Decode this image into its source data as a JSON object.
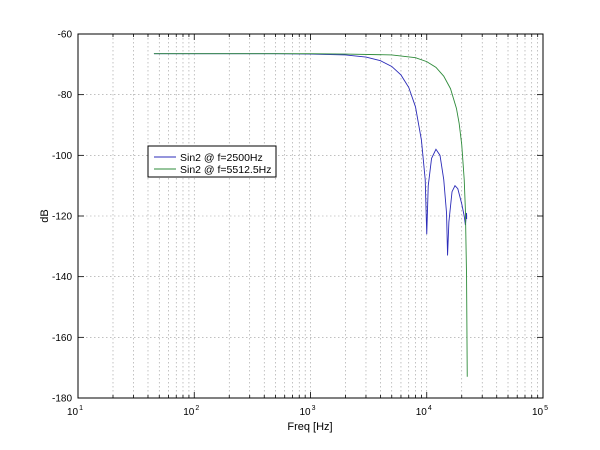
{
  "chart_data": {
    "type": "line",
    "title": "",
    "xlabel": "Freq [Hz]",
    "ylabel": "dB",
    "xscale": "log",
    "xlim": [
      10,
      100000
    ],
    "ylim": [
      -180,
      -60
    ],
    "grid": true,
    "legend_position": "upper-left",
    "x_ticks": [
      {
        "base": "10",
        "exp": "1"
      },
      {
        "base": "10",
        "exp": "2"
      },
      {
        "base": "10",
        "exp": "3"
      },
      {
        "base": "10",
        "exp": "4"
      },
      {
        "base": "10",
        "exp": "5"
      }
    ],
    "y_ticks": [
      "-60",
      "-80",
      "-100",
      "-120",
      "-140",
      "-160",
      "-180"
    ],
    "series": [
      {
        "name": "Sin2 @ f=2500Hz",
        "color": "#2b2bb8",
        "points": [
          [
            45,
            -66.5
          ],
          [
            100,
            -66.5
          ],
          [
            500,
            -66.5
          ],
          [
            1000,
            -66.6
          ],
          [
            2000,
            -66.9
          ],
          [
            3000,
            -67.6
          ],
          [
            4000,
            -68.8
          ],
          [
            5000,
            -70.7
          ],
          [
            6000,
            -73.5
          ],
          [
            7000,
            -77.6
          ],
          [
            8000,
            -84
          ],
          [
            9000,
            -95
          ],
          [
            9700,
            -108
          ],
          [
            10000,
            -126
          ],
          [
            10300,
            -110
          ],
          [
            11000,
            -101
          ],
          [
            12000,
            -98
          ],
          [
            13000,
            -100
          ],
          [
            14000,
            -108
          ],
          [
            14800,
            -119
          ],
          [
            15100,
            -133
          ],
          [
            15500,
            -122
          ],
          [
            16500,
            -112
          ],
          [
            17500,
            -110
          ],
          [
            18500,
            -111
          ],
          [
            20000,
            -116
          ],
          [
            21000,
            -120
          ],
          [
            21500,
            -123
          ],
          [
            22000,
            -119
          ],
          [
            22050,
            -121
          ]
        ]
      },
      {
        "name": "Sin2 @ f=5512.5Hz",
        "color": "#2e8b3a",
        "points": [
          [
            45,
            -66.5
          ],
          [
            100,
            -66.5
          ],
          [
            500,
            -66.5
          ],
          [
            1000,
            -66.5
          ],
          [
            2000,
            -66.6
          ],
          [
            5000,
            -66.9
          ],
          [
            8000,
            -67.8
          ],
          [
            10000,
            -69.1
          ],
          [
            12000,
            -71
          ],
          [
            14000,
            -73.9
          ],
          [
            16000,
            -78
          ],
          [
            18000,
            -84.5
          ],
          [
            19000,
            -89.5
          ],
          [
            20000,
            -96.5
          ],
          [
            21000,
            -108
          ],
          [
            21500,
            -118
          ],
          [
            22000,
            -140
          ],
          [
            22300,
            -173
          ]
        ]
      }
    ]
  }
}
